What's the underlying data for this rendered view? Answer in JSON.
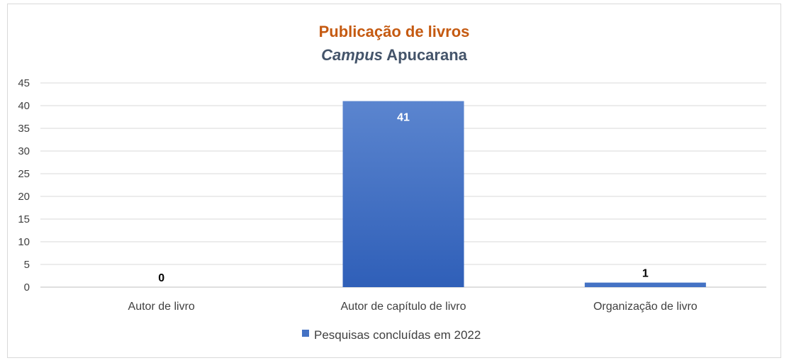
{
  "chart_data": {
    "type": "bar",
    "title": "Publicação de livros",
    "subtitle": {
      "italic_part": "Campus",
      "regular_part": " Apucarana"
    },
    "categories": [
      "Autor de livro",
      "Autor de capítulo de livro",
      "Organização de livro"
    ],
    "series": [
      {
        "name": "Pesquisas concluídas em 2022",
        "values": [
          0,
          41,
          1
        ],
        "color": "#4472c4"
      }
    ],
    "ylim": [
      0,
      45
    ],
    "yticks": [
      0,
      5,
      10,
      15,
      20,
      25,
      30,
      35,
      40,
      45
    ],
    "grid": true,
    "legend_position": "bottom",
    "xlabel": "",
    "ylabel": ""
  }
}
